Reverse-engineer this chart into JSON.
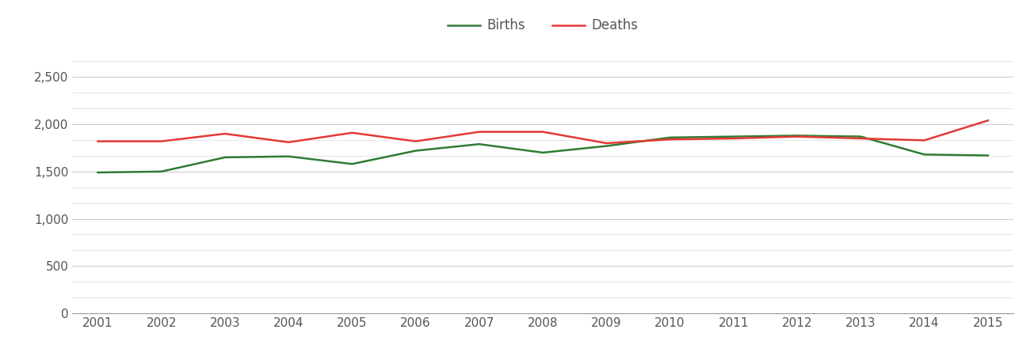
{
  "years": [
    2001,
    2002,
    2003,
    2004,
    2005,
    2006,
    2007,
    2008,
    2009,
    2010,
    2011,
    2012,
    2013,
    2014,
    2015
  ],
  "births": [
    1490,
    1500,
    1650,
    1660,
    1580,
    1720,
    1790,
    1700,
    1770,
    1860,
    1870,
    1880,
    1870,
    1680,
    1670
  ],
  "deaths": [
    1820,
    1820,
    1900,
    1810,
    1910,
    1820,
    1920,
    1920,
    1800,
    1840,
    1850,
    1870,
    1850,
    1830,
    2040
  ],
  "births_color": "#2e7d32",
  "deaths_color": "#e53935",
  "line_width": 1.8,
  "ylim": [
    0,
    2750
  ],
  "yticks_major": [
    0,
    500,
    1000,
    1500,
    2000,
    2500
  ],
  "background_color": "#ffffff",
  "grid_color": "#cccccc",
  "minor_grid_color": "#e0e0e0",
  "legend_labels": [
    "Births",
    "Deaths"
  ],
  "font_color": "#555555",
  "tick_fontsize": 11,
  "legend_fontsize": 12
}
